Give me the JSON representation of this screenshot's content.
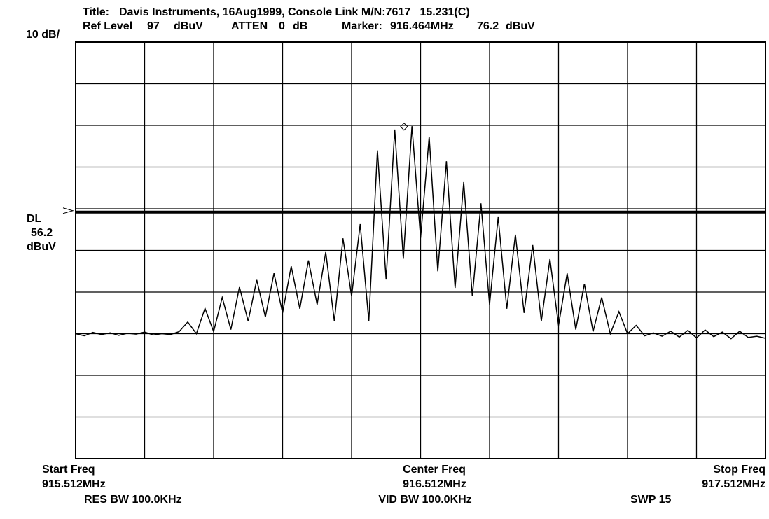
{
  "chart_data": {
    "type": "line",
    "title_prefix": "Title:",
    "title": "Davis Instruments, 16Aug1999, Console Link M/N:7617   15.231(C)",
    "ref_level_label": "Ref Level",
    "ref_level": 97,
    "ref_unit": "dBuV",
    "atten_label": "ATTEN",
    "atten": 0,
    "atten_unit": "dB",
    "marker_label": "Marker:",
    "marker_x": {
      "value": 916.464,
      "label": "916.464MHz"
    },
    "marker_value": 76.2,
    "marker_unit": "dBuV",
    "scale_label": "10 dB/",
    "display_line_label": "DL",
    "display_line": 56.2,
    "display_line_unit": "dBuV",
    "start_label": "Start Freq",
    "center_label": "Center Freq",
    "stop_label": "Stop Freq",
    "freq_labels": [
      {
        "value": 915.512,
        "label": "915.512MHz"
      },
      {
        "value": 916.512,
        "label": "916.512MHz"
      },
      {
        "value": 917.512,
        "label": "917.512MHz"
      }
    ],
    "res_bw": "RES BW 100.0KHz",
    "vid_bw": "VID BW 100.0KHz",
    "sweep": "SWP 15",
    "xlim": [
      915.512,
      917.512
    ],
    "xticks": [
      915.512,
      915.712,
      915.912,
      916.112,
      916.312,
      916.512,
      916.712,
      916.912,
      917.112,
      917.312,
      917.512
    ],
    "ylim": [
      -3,
      97
    ],
    "yticks": [
      -3,
      7,
      17,
      27,
      37,
      47,
      57,
      67,
      77,
      87,
      97
    ],
    "grid": true,
    "color": "#000000",
    "x": [
      915.512,
      915.537,
      915.562,
      915.587,
      915.612,
      915.637,
      915.662,
      915.687,
      915.712,
      915.737,
      915.762,
      915.787,
      915.812,
      915.837,
      915.862,
      915.887,
      915.912,
      915.937,
      915.962,
      915.987,
      916.012,
      916.037,
      916.062,
      916.087,
      916.112,
      916.137,
      916.162,
      916.187,
      916.212,
      916.237,
      916.262,
      916.287,
      916.312,
      916.337,
      916.362,
      916.387,
      916.412,
      916.437,
      916.462,
      916.487,
      916.512,
      916.537,
      916.562,
      916.587,
      916.612,
      916.637,
      916.662,
      916.687,
      916.712,
      916.737,
      916.762,
      916.787,
      916.812,
      916.837,
      916.862,
      916.887,
      916.912,
      916.937,
      916.962,
      916.987,
      917.012,
      917.037,
      917.062,
      917.087,
      917.112,
      917.137,
      917.162,
      917.187,
      917.212,
      917.237,
      917.262,
      917.287,
      917.312,
      917.337,
      917.362,
      917.387,
      917.412,
      917.437,
      917.462,
      917.487,
      917.512
    ],
    "values": [
      27.0,
      26.5,
      27.3,
      26.8,
      27.2,
      26.6,
      27.1,
      26.9,
      27.4,
      26.7,
      27.0,
      26.8,
      27.5,
      29.8,
      27.0,
      33.1,
      27.5,
      35.7,
      28.0,
      38.2,
      30.0,
      39.9,
      31.0,
      41.5,
      32.0,
      43.2,
      33.0,
      44.6,
      34.0,
      46.6,
      30.0,
      49.9,
      36.0,
      53.3,
      30.0,
      71.0,
      40.0,
      76.0,
      45.0,
      76.8,
      50.0,
      74.3,
      42.0,
      68.4,
      38.0,
      63.4,
      36.0,
      58.3,
      34.0,
      55.0,
      33.0,
      50.8,
      32.0,
      48.3,
      30.0,
      44.9,
      29.0,
      41.5,
      28.0,
      39.0,
      27.5,
      35.7,
      27.0,
      32.3,
      27.0,
      29.0,
      26.5,
      27.2,
      26.4,
      27.6,
      26.2,
      27.8,
      26.0,
      27.9,
      26.3,
      27.4,
      25.8,
      27.6,
      26.1,
      26.4,
      25.9
    ]
  }
}
